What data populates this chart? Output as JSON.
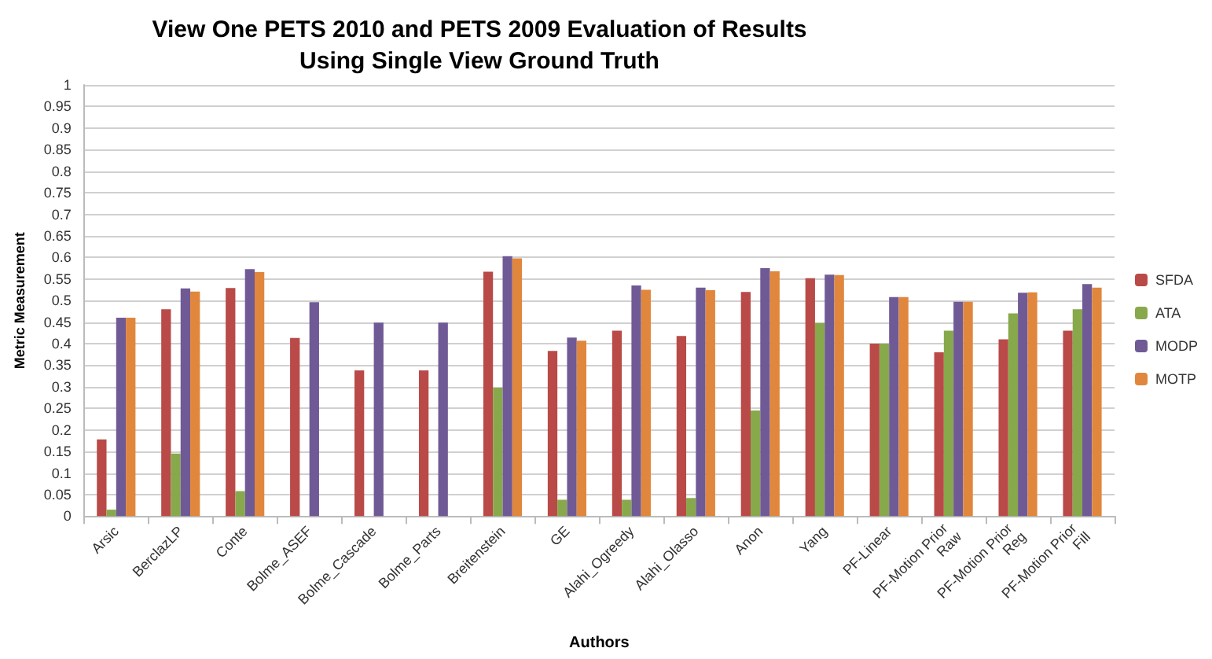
{
  "chart_data": {
    "type": "bar",
    "title": "View One PETS 2010 and PETS 2009 Evaluation of Results\nUsing Single View Ground Truth",
    "xlabel": "Authors",
    "ylabel": "Metric Measurement",
    "categories": [
      "Arsic",
      "BerclazLP",
      "Conte",
      "Bolme_ASEF",
      "Bolme_Cascade",
      "Bolme_Parts",
      "Breitenstein",
      "GE",
      "Alahi_Ogreedy",
      "Alahi_Olasso",
      "Anon",
      "Yang",
      "PF-Linear",
      "PF-Motion Prior Raw",
      "PF-Motion Prior Reg",
      "PF-Motion Prior Fill"
    ],
    "series": [
      {
        "name": "SFDA",
        "color": "#b94a48",
        "values": [
          0.178,
          0.48,
          0.529,
          0.413,
          0.338,
          0.338,
          0.567,
          0.383,
          0.43,
          0.418,
          0.52,
          0.552,
          0.4,
          0.38,
          0.41,
          0.43
        ]
      },
      {
        "name": "ATA",
        "color": "#87a94b",
        "values": [
          0.015,
          0.145,
          0.058,
          null,
          null,
          null,
          0.298,
          0.038,
          0.038,
          0.042,
          0.245,
          0.448,
          0.4,
          0.43,
          0.47,
          0.48
        ]
      },
      {
        "name": "MODP",
        "color": "#6f5a96",
        "values": [
          0.46,
          0.528,
          0.573,
          0.496,
          0.449,
          0.449,
          0.603,
          0.414,
          0.535,
          0.53,
          0.575,
          0.56,
          0.508,
          0.497,
          0.518,
          0.538
        ]
      },
      {
        "name": "MOTP",
        "color": "#e0873d",
        "values": [
          0.46,
          0.521,
          0.566,
          null,
          null,
          null,
          0.598,
          0.407,
          0.525,
          0.524,
          0.568,
          0.559,
          0.508,
          0.497,
          0.519,
          0.53
        ]
      }
    ],
    "ylim": [
      0,
      1
    ],
    "yticks": [
      0,
      0.05,
      0.1,
      0.15,
      0.2,
      0.25,
      0.3,
      0.35,
      0.4,
      0.45,
      0.5,
      0.55,
      0.6,
      0.65,
      0.7,
      0.75,
      0.8,
      0.85,
      0.9,
      0.95,
      1
    ],
    "grid": "y",
    "legend": "right"
  }
}
